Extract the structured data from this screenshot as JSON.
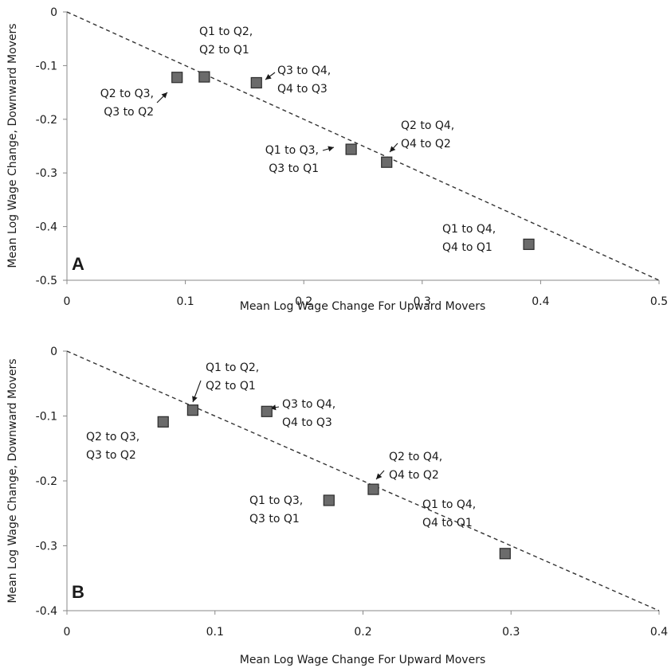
{
  "chart_data": [
    {
      "type": "scatter",
      "panel_label": "A",
      "xlabel": "Mean Log Wage Change For Upward Movers",
      "ylabel": "Mean Log Wage Change, Downward Movers",
      "xlim": [
        0,
        0.5
      ],
      "ylim": [
        -0.5,
        0
      ],
      "x_ticks": [
        "0",
        "0.1",
        "0.2",
        "0.3",
        "0.4",
        "0.5"
      ],
      "y_ticks": [
        "0",
        "-0.1",
        "-0.2",
        "-0.3",
        "-0.4",
        "-0.5"
      ],
      "reference_line": "y = -x (dashed)",
      "points": [
        {
          "label_line1": "Q2 to Q3,",
          "label_line2": "Q3 to Q2",
          "x": 0.093,
          "y": -0.122
        },
        {
          "label_line1": "Q1 to Q2,",
          "label_line2": "Q2 to Q1",
          "x": 0.116,
          "y": -0.121
        },
        {
          "label_line1": "Q3 to Q4,",
          "label_line2": "Q4 to Q3",
          "x": 0.16,
          "y": -0.132
        },
        {
          "label_line1": "Q1 to Q3,",
          "label_line2": "Q3 to Q1",
          "x": 0.24,
          "y": -0.256
        },
        {
          "label_line1": "Q2 to Q4,",
          "label_line2": "Q4 to Q2",
          "x": 0.27,
          "y": -0.28
        },
        {
          "label_line1": "Q1 to Q4,",
          "label_line2": "Q4 to Q1",
          "x": 0.39,
          "y": -0.433
        }
      ]
    },
    {
      "type": "scatter",
      "panel_label": "B",
      "xlabel": "Mean Log Wage Change For Upward Movers",
      "ylabel": "Mean Log Wage Change, Downward Movers",
      "xlim": [
        0,
        0.4
      ],
      "ylim": [
        -0.4,
        0
      ],
      "x_ticks": [
        "0",
        "0.1",
        "0.2",
        "0.3",
        "0.4"
      ],
      "y_ticks": [
        "0",
        "-0.1",
        "-0.2",
        "-0.3",
        "-0.4"
      ],
      "reference_line": "y = -x (dashed)",
      "points": [
        {
          "label_line1": "Q2 to Q3,",
          "label_line2": "Q3 to Q2",
          "x": 0.065,
          "y": -0.109
        },
        {
          "label_line1": "Q1 to Q2,",
          "label_line2": "Q2 to Q1",
          "x": 0.085,
          "y": -0.091
        },
        {
          "label_line1": "Q3 to Q4,",
          "label_line2": "Q4 to Q3",
          "x": 0.135,
          "y": -0.093
        },
        {
          "label_line1": "Q1 to Q3,",
          "label_line2": "Q3 to Q1",
          "x": 0.177,
          "y": -0.23
        },
        {
          "label_line1": "Q2 to Q4,",
          "label_line2": "Q4 to Q2",
          "x": 0.207,
          "y": -0.213
        },
        {
          "label_line1": "Q1 to Q4,",
          "label_line2": "Q4 to Q1",
          "x": 0.296,
          "y": -0.312
        }
      ]
    }
  ]
}
